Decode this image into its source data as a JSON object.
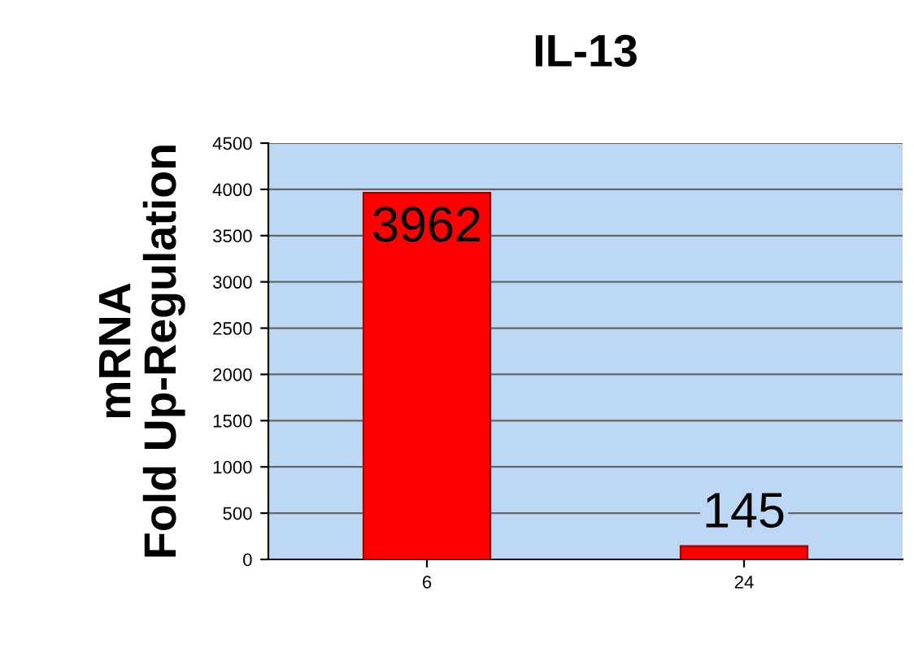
{
  "chart_data": {
    "type": "bar",
    "title": "IL-13",
    "ylabel": "mRNA\nFold Up-Regulation",
    "categories": [
      "6",
      "24"
    ],
    "values": [
      3962,
      145
    ],
    "color": "#ff0000",
    "ylim": [
      0,
      4500
    ],
    "yticks": [
      0,
      500,
      1000,
      1500,
      2000,
      2500,
      3000,
      3500,
      4000,
      4500
    ],
    "grid": "y",
    "data_labels": true
  }
}
